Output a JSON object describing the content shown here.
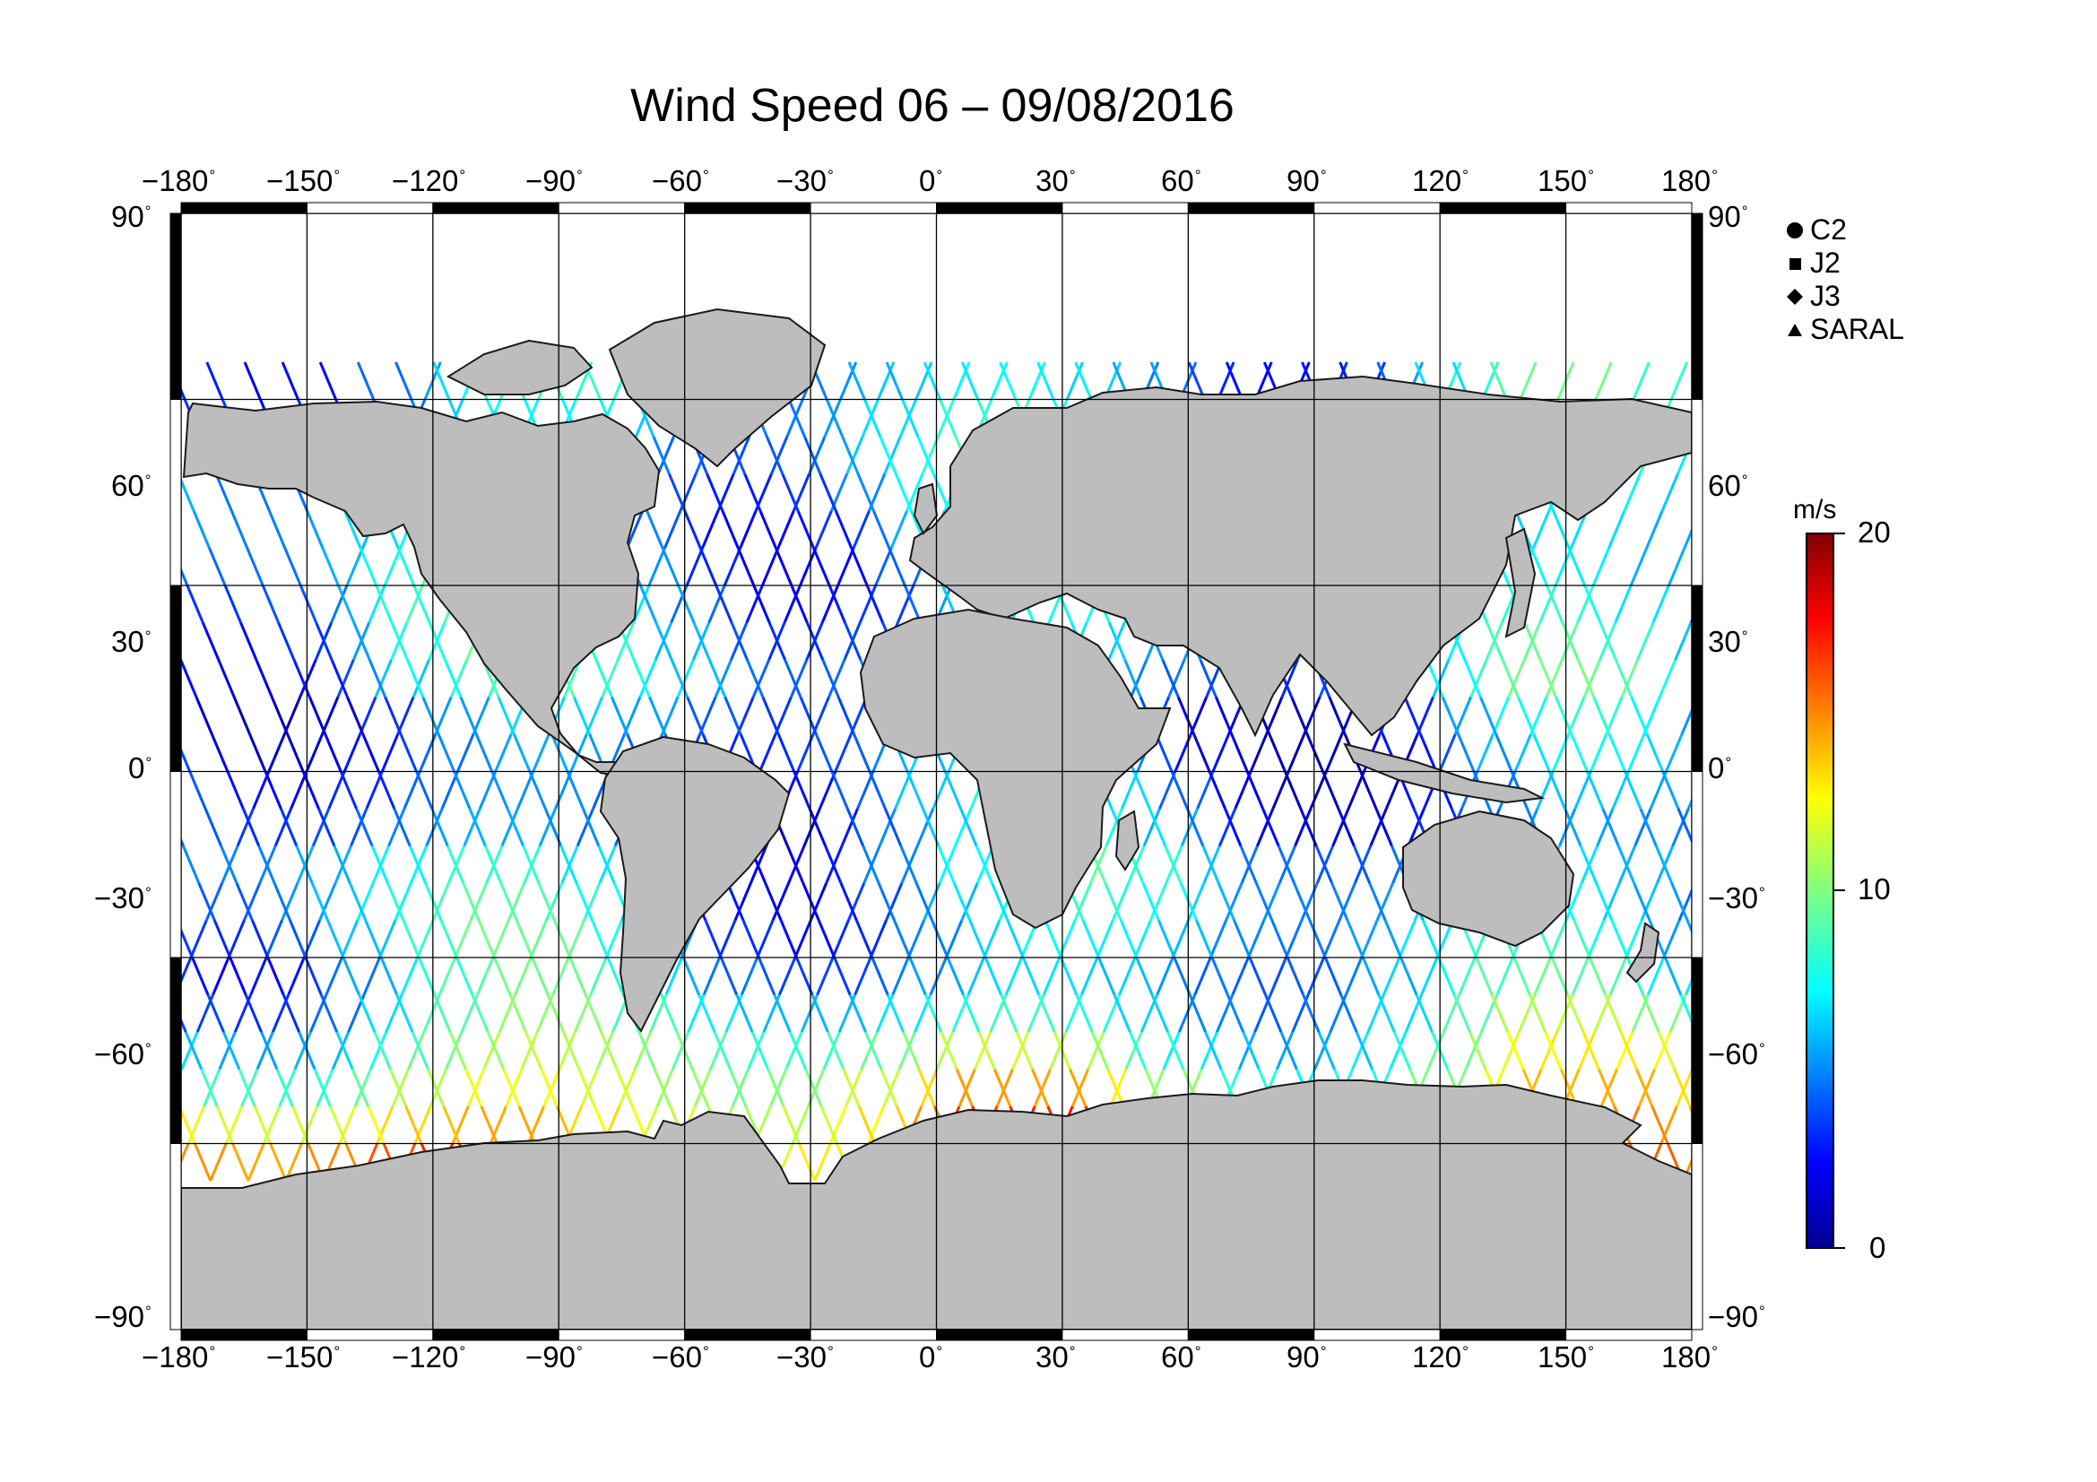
{
  "title": "Wind Speed 06 – 09/08/2016",
  "axes": {
    "lon_ticks": [
      "−180",
      "−150",
      "−120",
      "−90",
      "−60",
      "−30",
      "0",
      "30",
      "60",
      "90",
      "120",
      "150",
      "180"
    ],
    "lat_ticks": [
      "90",
      "60",
      "30",
      "0",
      "−30",
      "−60",
      "−90"
    ],
    "degree_symbol": "°",
    "lon_range": [
      -180,
      180
    ],
    "lat_range": [
      -90,
      90
    ],
    "grid": true
  },
  "legend": {
    "items": [
      {
        "label": "C2",
        "symbol": "circle-icon"
      },
      {
        "label": "J2",
        "symbol": "square-icon"
      },
      {
        "label": "J3",
        "symbol": "diamond-icon"
      },
      {
        "label": "SARAL",
        "symbol": "triangle-icon"
      }
    ]
  },
  "colorbar": {
    "unit": "m/s",
    "labels": [
      "20",
      "10",
      "0"
    ],
    "range": [
      0,
      20
    ],
    "colormap": "jet"
  },
  "colors": {
    "land": "#bdbdbd",
    "coast": "#1a1a1a",
    "frame_dark": "#000000",
    "frame_light": "#ffffff"
  }
}
